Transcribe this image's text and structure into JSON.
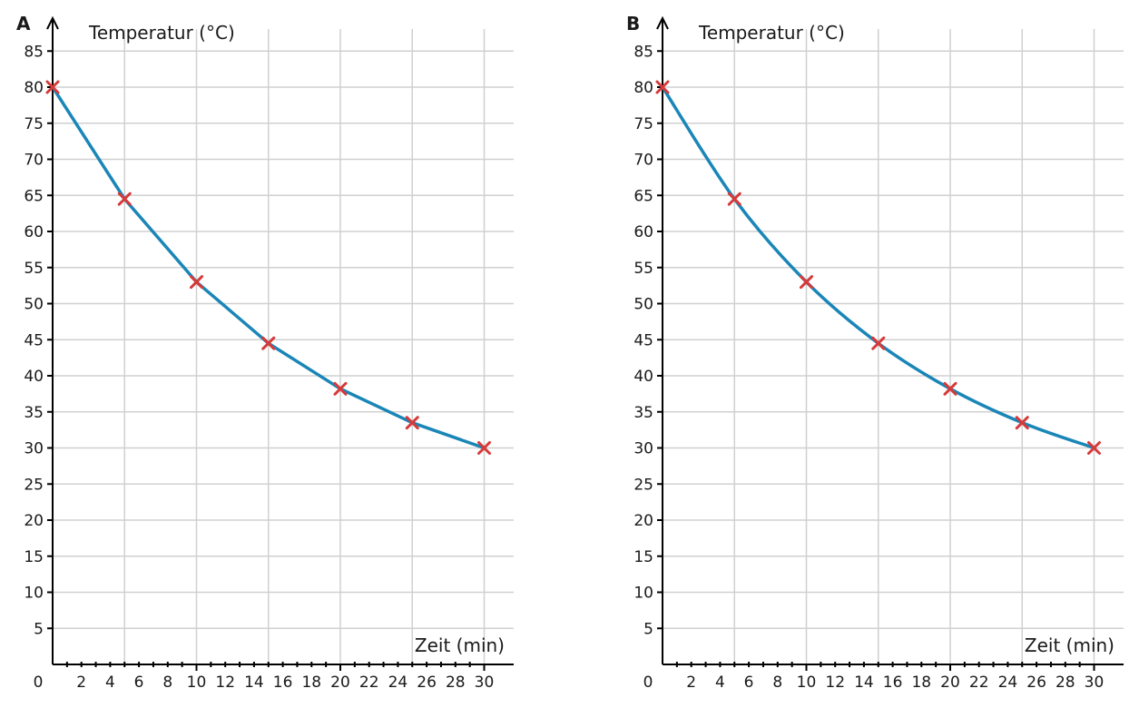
{
  "colors": {
    "curve": "#1a86b8",
    "marker": "#d63a3a",
    "grid": "#d0d0d0",
    "axis": "#000000"
  },
  "chart_data": [
    {
      "type": "line",
      "panel_label": "A",
      "interpolation": "piecewise-linear",
      "ylabel": "Temperatur (°C)",
      "xlabel": "Zeit (min)",
      "xlim": [
        0,
        31
      ],
      "ylim": [
        0,
        88
      ],
      "x_ticks_major": [
        10,
        20,
        30
      ],
      "x_tick_labels": [
        "0",
        "2",
        "4",
        "6",
        "8",
        "10",
        "12",
        "14",
        "16",
        "18",
        "20",
        "22",
        "24",
        "26",
        "28",
        "30"
      ],
      "y_tick_labels": [
        "5",
        "10",
        "15",
        "20",
        "25",
        "30",
        "35",
        "40",
        "45",
        "50",
        "55",
        "60",
        "65",
        "70",
        "75",
        "80",
        "85"
      ],
      "grid": true,
      "series": [
        {
          "x": [
            0,
            5,
            10,
            15,
            20,
            25,
            30
          ],
          "y": [
            80,
            64.5,
            53,
            44.5,
            38.2,
            33.5,
            30
          ]
        }
      ]
    },
    {
      "type": "line",
      "panel_label": "B",
      "interpolation": "smooth",
      "ylabel": "Temperatur (°C)",
      "xlabel": "Zeit (min)",
      "xlim": [
        0,
        31
      ],
      "ylim": [
        0,
        88
      ],
      "x_ticks_major": [
        10,
        20,
        30
      ],
      "x_tick_labels": [
        "0",
        "2",
        "4",
        "6",
        "8",
        "10",
        "12",
        "14",
        "16",
        "18",
        "20",
        "22",
        "24",
        "26",
        "28",
        "30"
      ],
      "y_tick_labels": [
        "5",
        "10",
        "15",
        "20",
        "25",
        "30",
        "35",
        "40",
        "45",
        "50",
        "55",
        "60",
        "65",
        "70",
        "75",
        "80",
        "85"
      ],
      "grid": true,
      "series": [
        {
          "x": [
            0,
            5,
            10,
            15,
            20,
            25,
            30
          ],
          "y": [
            80,
            64.5,
            53,
            44.5,
            38.2,
            33.5,
            30
          ]
        }
      ]
    }
  ]
}
